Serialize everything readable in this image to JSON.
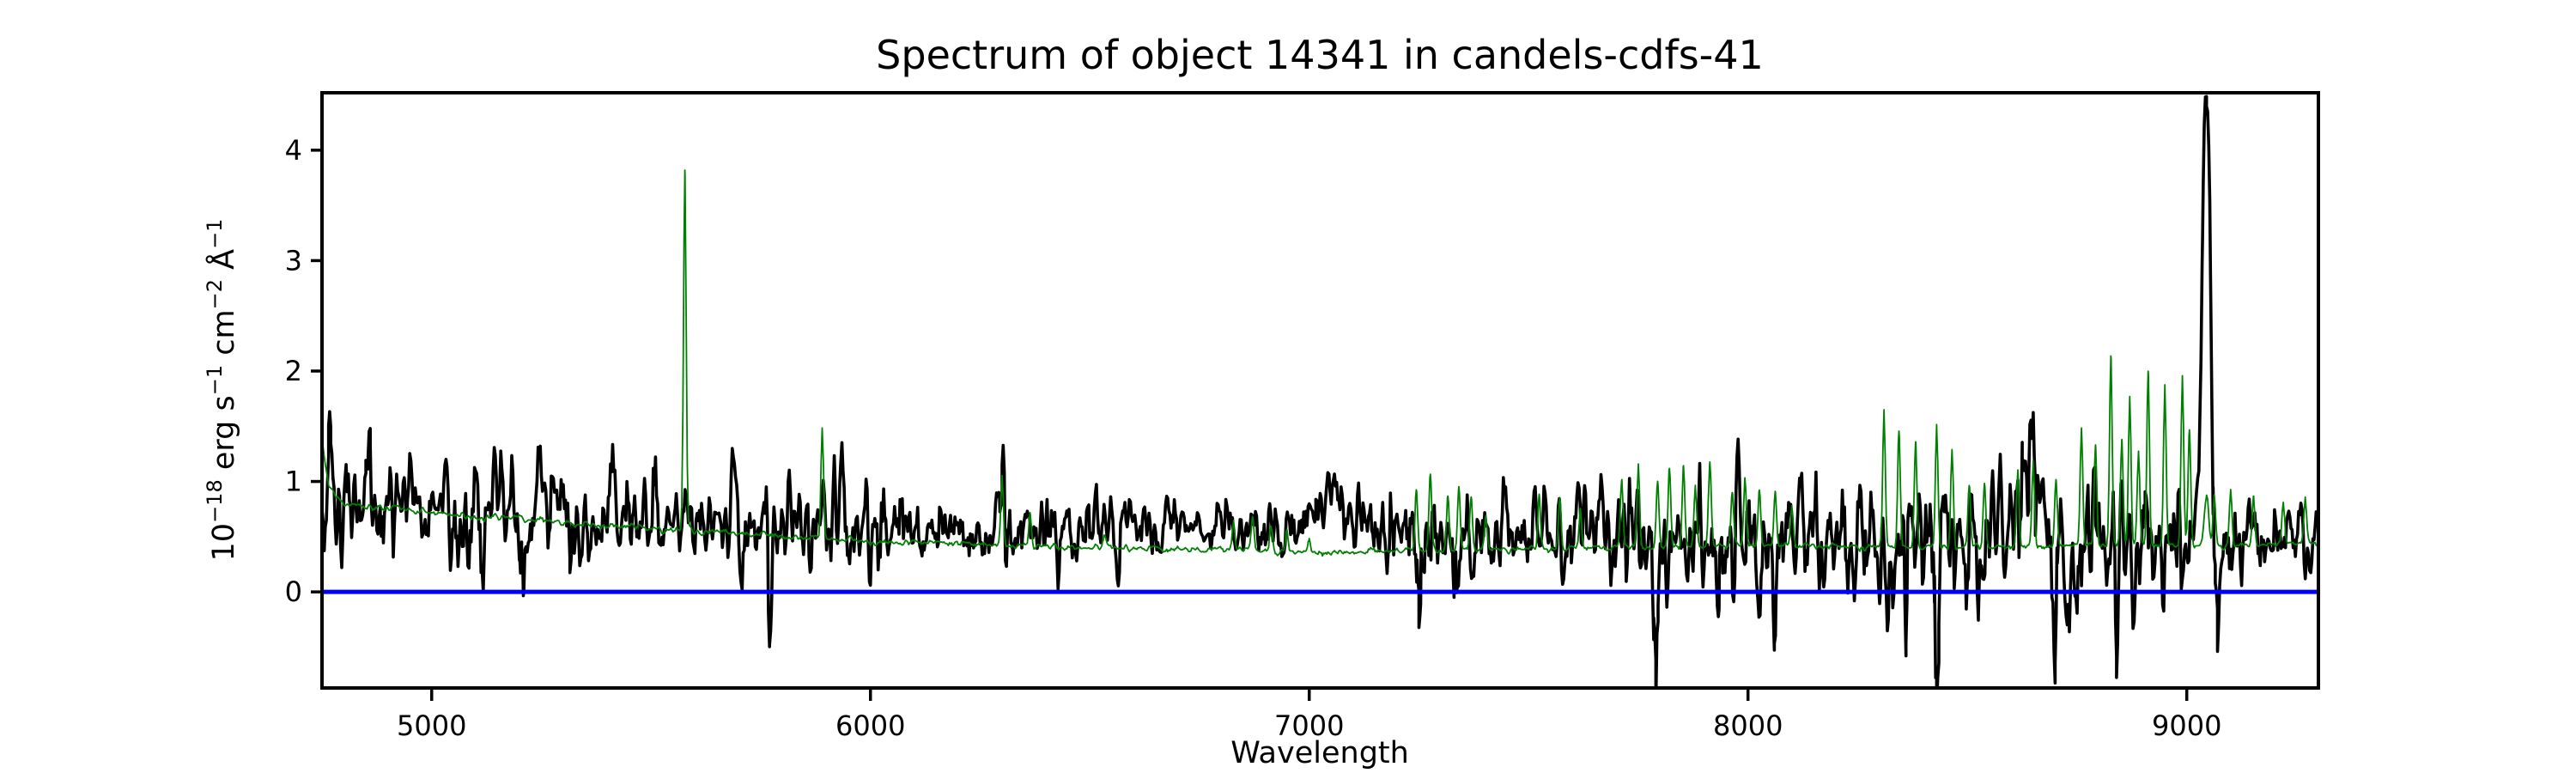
{
  "figure": {
    "background": "#ffffff"
  },
  "chart_data": {
    "type": "line",
    "title": "Spectrum of object 14341 in candels-cdfs-41",
    "xlabel": "Wavelength",
    "ylabel": "10⁻¹⁸ erg s⁻¹ cm⁻² Å⁻¹",
    "ylabel_parts": [
      {
        "text": "10"
      },
      {
        "sup": "−18"
      },
      {
        "text": " erg s"
      },
      {
        "sup": "−1"
      },
      {
        "text": " cm"
      },
      {
        "sup": "−2"
      },
      {
        "text": " Å"
      },
      {
        "sup": "−1"
      }
    ],
    "xlim": [
      4750,
      9300
    ],
    "ylim": [
      -0.87,
      4.52
    ],
    "xticks": [
      5000,
      6000,
      7000,
      8000,
      9000
    ],
    "yticks": [
      0,
      1,
      2,
      3,
      4
    ],
    "grid": false,
    "legend": null,
    "axis_color": "#000000",
    "series": [
      {
        "name": "flux-spectrum",
        "kind": "noisy",
        "color": "#000000",
        "line_width": 3.6,
        "sample_step": 2.5,
        "seed": 1337,
        "continuum": [
          [
            4750,
            0.85
          ],
          [
            4900,
            0.8
          ],
          [
            5100,
            0.74
          ],
          [
            5300,
            0.68
          ],
          [
            5600,
            0.64
          ],
          [
            6000,
            0.58
          ],
          [
            6400,
            0.55
          ],
          [
            6700,
            0.56
          ],
          [
            7000,
            0.58
          ],
          [
            7150,
            0.52
          ],
          [
            7300,
            0.46
          ],
          [
            7600,
            0.5
          ],
          [
            7800,
            0.44
          ],
          [
            8100,
            0.48
          ],
          [
            8300,
            0.44
          ],
          [
            8500,
            0.42
          ],
          [
            8640,
            0.5
          ],
          [
            8800,
            0.46
          ],
          [
            9000,
            0.48
          ],
          [
            9150,
            0.46
          ],
          [
            9300,
            0.5
          ]
        ],
        "noise_sigma": [
          [
            4750,
            0.27
          ],
          [
            5000,
            0.24
          ],
          [
            5400,
            0.22
          ],
          [
            6000,
            0.2
          ],
          [
            6500,
            0.13
          ],
          [
            7000,
            0.13
          ],
          [
            7200,
            0.24
          ],
          [
            7450,
            0.2
          ],
          [
            7700,
            0.27
          ],
          [
            8000,
            0.26
          ],
          [
            8200,
            0.23
          ],
          [
            8350,
            0.33
          ],
          [
            8600,
            0.32
          ],
          [
            8900,
            0.29
          ],
          [
            9100,
            0.22
          ],
          [
            9300,
            0.19
          ]
        ],
        "features": [
          [
            4770,
            0.5,
            5
          ],
          [
            4855,
            0.55,
            5
          ],
          [
            6300,
            0.3,
            6
          ],
          [
            7050,
            0.3,
            35
          ],
          [
            8640,
            0.5,
            15
          ],
          [
            8905,
            0.55,
            6
          ],
          [
            9045,
            3.82,
            9
          ],
          [
            5205,
            -0.5,
            4
          ],
          [
            5315,
            -0.5,
            4
          ],
          [
            5770,
            -0.75,
            4
          ],
          [
            7250,
            -0.6,
            4
          ],
          [
            7330,
            -0.5,
            4
          ],
          [
            7790,
            -0.85,
            5
          ],
          [
            7930,
            -0.6,
            4
          ],
          [
            8060,
            -0.7,
            4
          ],
          [
            8360,
            -0.7,
            4
          ],
          [
            8430,
            -0.85,
            5
          ],
          [
            8525,
            -0.85,
            4
          ],
          [
            8700,
            -0.8,
            4
          ],
          [
            8840,
            -0.9,
            4
          ],
          [
            9065,
            -1.05,
            5
          ]
        ]
      },
      {
        "name": "sky-noise-spectrum",
        "kind": "noisy",
        "color": "#008000",
        "line_width": 1.8,
        "sample_step": 2.5,
        "seed": 4242,
        "continuum": [
          [
            4750,
            1.4
          ],
          [
            4765,
            0.95
          ],
          [
            4800,
            0.8
          ],
          [
            5000,
            0.72
          ],
          [
            5300,
            0.63
          ],
          [
            5600,
            0.55
          ],
          [
            6000,
            0.46
          ],
          [
            6400,
            0.41
          ],
          [
            7000,
            0.36
          ],
          [
            7400,
            0.38
          ],
          [
            7700,
            0.4
          ],
          [
            8000,
            0.42
          ],
          [
            8400,
            0.4
          ],
          [
            8800,
            0.42
          ],
          [
            9100,
            0.42
          ],
          [
            9300,
            0.45
          ]
        ],
        "noise_sigma": [
          [
            4750,
            0.016
          ],
          [
            9300,
            0.012
          ]
        ],
        "features": [
          [
            5577,
            3.25,
            3
          ],
          [
            5890,
            1.0,
            3
          ],
          [
            6300,
            0.63,
            3
          ],
          [
            6364,
            0.3,
            3
          ],
          [
            6533,
            0.12,
            3
          ],
          [
            6828,
            0.25,
            3
          ],
          [
            6871,
            0.32,
            3
          ],
          [
            6913,
            0.25,
            3
          ],
          [
            6949,
            0.2,
            3
          ],
          [
            7000,
            0.12,
            3
          ],
          [
            7244,
            0.55,
            3
          ],
          [
            7276,
            0.7,
            3
          ],
          [
            7316,
            0.5,
            3
          ],
          [
            7341,
            0.57,
            3
          ],
          [
            7369,
            0.48,
            3
          ],
          [
            7402,
            0.3,
            3
          ],
          [
            7524,
            0.5,
            3
          ],
          [
            7571,
            0.45,
            3
          ],
          [
            7618,
            0.35,
            3
          ],
          [
            7712,
            0.62,
            3
          ],
          [
            7750,
            0.74,
            3
          ],
          [
            7794,
            0.6,
            3
          ],
          [
            7821,
            0.72,
            3
          ],
          [
            7853,
            0.72,
            3
          ],
          [
            7880,
            0.55,
            3
          ],
          [
            7913,
            0.77,
            3
          ],
          [
            7964,
            0.5,
            3
          ],
          [
            7993,
            0.6,
            3
          ],
          [
            8026,
            0.52,
            3
          ],
          [
            8062,
            0.48,
            3
          ],
          [
            8100,
            0.35,
            3
          ],
          [
            8310,
            1.24,
            3
          ],
          [
            8344,
            1.08,
            3
          ],
          [
            8382,
            0.98,
            3
          ],
          [
            8430,
            1.1,
            3
          ],
          [
            8465,
            0.88,
            3
          ],
          [
            8504,
            0.55,
            3
          ],
          [
            8539,
            0.58,
            3
          ],
          [
            8615,
            0.68,
            3
          ],
          [
            8650,
            0.78,
            3
          ],
          [
            8702,
            0.62,
            3
          ],
          [
            8760,
            1.05,
            3
          ],
          [
            8792,
            0.9,
            3
          ],
          [
            8827,
            1.7,
            3
          ],
          [
            8852,
            0.95,
            3
          ],
          [
            8870,
            1.35,
            3
          ],
          [
            8890,
            0.85,
            3
          ],
          [
            8912,
            1.55,
            3
          ],
          [
            8950,
            1.45,
            3
          ],
          [
            8990,
            1.55,
            3
          ],
          [
            9006,
            1.05,
            3
          ],
          [
            9045,
            0.45,
            5
          ],
          [
            9063,
            0.45,
            3
          ],
          [
            9100,
            0.5,
            3
          ],
          [
            9152,
            0.42,
            3
          ],
          [
            9220,
            0.38,
            3
          ],
          [
            9270,
            0.42,
            3
          ]
        ]
      },
      {
        "name": "zero-line",
        "kind": "hline",
        "color": "#0000ff",
        "line_width": 5,
        "y": 0
      }
    ]
  }
}
